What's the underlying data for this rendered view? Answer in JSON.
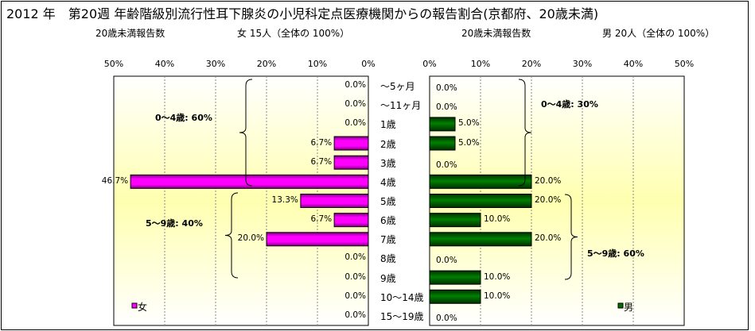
{
  "chart_data": {
    "type": "bar",
    "title": "2012 年　第20週 年齢階級別流行性耳下腺炎の小児科定点医療機関からの報告割合(京都府、20歳未満)",
    "categories": [
      "～5ヶ月",
      "～11ヶ月",
      "1歳",
      "2歳",
      "3歳",
      "4歳",
      "5歳",
      "6歳",
      "7歳",
      "8歳",
      "9歳",
      "10～14歳",
      "15～19歳"
    ],
    "xlim": [
      0,
      50
    ],
    "ticks": [
      "0%",
      "10%",
      "20%",
      "30%",
      "40%",
      "50%"
    ],
    "series": [
      {
        "name": "女",
        "color": "#ff00ff",
        "subtitle_left": "20歳未満報告数",
        "subtitle_right": "女 15人（全体の 100%）",
        "values": [
          0,
          0,
          0,
          6.7,
          6.7,
          46.7,
          13.3,
          6.7,
          20.0,
          0,
          0,
          0,
          0
        ],
        "labels": [
          "0.0%",
          "0.0%",
          "0.0%",
          "6.7%",
          "6.7%",
          "46.7%",
          "13.3%",
          "6.7%",
          "20.0%",
          "0.0%",
          "0.0%",
          "0.0%",
          "0.0%"
        ],
        "annotations": [
          "0～4歳: 60%",
          "5～9歳: 40%"
        ]
      },
      {
        "name": "男",
        "color": "#007000",
        "subtitle_left": "20歳未満報告数",
        "subtitle_right": "男 20人（全体の 100%）",
        "values": [
          0,
          0,
          5,
          5,
          0,
          20,
          20,
          10,
          20,
          0,
          10,
          10,
          0
        ],
        "labels": [
          "0.0%",
          "0.0%",
          "5.0%",
          "5.0%",
          "0.0%",
          "20.0%",
          "20.0%",
          "10.0%",
          "20.0%",
          "0.0%",
          "10.0%",
          "10.0%",
          "0.0%"
        ],
        "annotations": [
          "0～4歳: 30%",
          "5～9歳: 60%"
        ]
      }
    ]
  }
}
